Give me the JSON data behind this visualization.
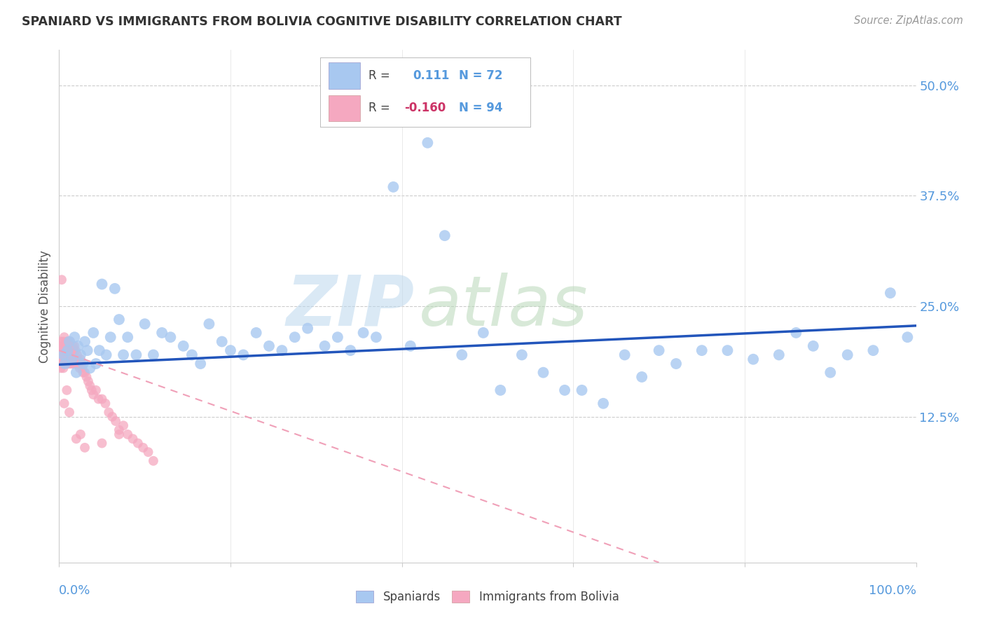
{
  "title": "SPANIARD VS IMMIGRANTS FROM BOLIVIA COGNITIVE DISABILITY CORRELATION CHART",
  "source": "Source: ZipAtlas.com",
  "ylabel": "Cognitive Disability",
  "xlim": [
    0.0,
    1.0
  ],
  "ylim": [
    -0.04,
    0.54
  ],
  "spaniards_color": "#a8c8f0",
  "spaniards_edge": "#7aaad8",
  "bolivia_color": "#f5a8c0",
  "bolivia_edge": "#e080a0",
  "trend_spaniards_color": "#2255bb",
  "trend_bolivia_color": "#f0a0b8",
  "background_color": "#ffffff",
  "grid_color": "#cccccc",
  "ytick_color": "#5599dd",
  "xtick_color": "#5599dd",
  "title_color": "#333333",
  "source_color": "#999999",
  "ylabel_color": "#555555",
  "watermark_zip_color": "#c8dff0",
  "watermark_atlas_color": "#c8e8c8",
  "spaniards_R": 0.111,
  "spaniards_N": 72,
  "bolivia_R": -0.16,
  "bolivia_N": 94,
  "sp_x": [
    0.005,
    0.007,
    0.01,
    0.012,
    0.015,
    0.018,
    0.02,
    0.022,
    0.025,
    0.028,
    0.03,
    0.033,
    0.036,
    0.04,
    0.043,
    0.047,
    0.05,
    0.055,
    0.06,
    0.065,
    0.07,
    0.075,
    0.08,
    0.09,
    0.1,
    0.11,
    0.12,
    0.13,
    0.145,
    0.155,
    0.165,
    0.175,
    0.19,
    0.2,
    0.215,
    0.23,
    0.245,
    0.26,
    0.275,
    0.29,
    0.31,
    0.325,
    0.34,
    0.355,
    0.37,
    0.39,
    0.41,
    0.43,
    0.45,
    0.47,
    0.495,
    0.515,
    0.54,
    0.565,
    0.59,
    0.61,
    0.635,
    0.66,
    0.68,
    0.7,
    0.72,
    0.75,
    0.78,
    0.81,
    0.84,
    0.86,
    0.88,
    0.9,
    0.92,
    0.95,
    0.97,
    0.99
  ],
  "sp_y": [
    0.195,
    0.185,
    0.2,
    0.21,
    0.19,
    0.215,
    0.175,
    0.205,
    0.195,
    0.185,
    0.21,
    0.2,
    0.18,
    0.22,
    0.185,
    0.2,
    0.275,
    0.195,
    0.215,
    0.27,
    0.235,
    0.195,
    0.215,
    0.195,
    0.23,
    0.195,
    0.22,
    0.215,
    0.205,
    0.195,
    0.185,
    0.23,
    0.21,
    0.2,
    0.195,
    0.22,
    0.205,
    0.2,
    0.215,
    0.225,
    0.205,
    0.215,
    0.2,
    0.22,
    0.215,
    0.385,
    0.205,
    0.435,
    0.33,
    0.195,
    0.22,
    0.155,
    0.195,
    0.175,
    0.155,
    0.155,
    0.14,
    0.195,
    0.17,
    0.2,
    0.185,
    0.2,
    0.2,
    0.19,
    0.195,
    0.22,
    0.205,
    0.175,
    0.195,
    0.2,
    0.265,
    0.215
  ],
  "bo_x": [
    0.001,
    0.001,
    0.001,
    0.002,
    0.002,
    0.002,
    0.002,
    0.003,
    0.003,
    0.003,
    0.003,
    0.004,
    0.004,
    0.004,
    0.005,
    0.005,
    0.005,
    0.005,
    0.006,
    0.006,
    0.006,
    0.006,
    0.007,
    0.007,
    0.007,
    0.007,
    0.008,
    0.008,
    0.008,
    0.009,
    0.009,
    0.009,
    0.01,
    0.01,
    0.01,
    0.011,
    0.011,
    0.011,
    0.012,
    0.012,
    0.013,
    0.013,
    0.013,
    0.014,
    0.014,
    0.015,
    0.015,
    0.016,
    0.016,
    0.017,
    0.017,
    0.018,
    0.018,
    0.019,
    0.019,
    0.02,
    0.021,
    0.022,
    0.023,
    0.024,
    0.025,
    0.026,
    0.027,
    0.028,
    0.03,
    0.032,
    0.034,
    0.036,
    0.038,
    0.04,
    0.043,
    0.046,
    0.05,
    0.054,
    0.058,
    0.062,
    0.066,
    0.07,
    0.075,
    0.08,
    0.086,
    0.092,
    0.098,
    0.104,
    0.11,
    0.003,
    0.006,
    0.009,
    0.012,
    0.02,
    0.025,
    0.03,
    0.05,
    0.07
  ],
  "bo_y": [
    0.195,
    0.185,
    0.205,
    0.2,
    0.19,
    0.21,
    0.18,
    0.195,
    0.205,
    0.185,
    0.2,
    0.195,
    0.205,
    0.185,
    0.2,
    0.19,
    0.21,
    0.18,
    0.195,
    0.205,
    0.185,
    0.215,
    0.195,
    0.205,
    0.185,
    0.2,
    0.195,
    0.205,
    0.185,
    0.2,
    0.19,
    0.21,
    0.195,
    0.205,
    0.185,
    0.2,
    0.19,
    0.21,
    0.195,
    0.185,
    0.2,
    0.19,
    0.21,
    0.195,
    0.185,
    0.2,
    0.19,
    0.205,
    0.185,
    0.2,
    0.19,
    0.205,
    0.185,
    0.2,
    0.19,
    0.185,
    0.195,
    0.19,
    0.185,
    0.18,
    0.19,
    0.185,
    0.18,
    0.175,
    0.175,
    0.17,
    0.165,
    0.16,
    0.155,
    0.15,
    0.155,
    0.145,
    0.145,
    0.14,
    0.13,
    0.125,
    0.12,
    0.11,
    0.115,
    0.105,
    0.1,
    0.095,
    0.09,
    0.085,
    0.075,
    0.28,
    0.14,
    0.155,
    0.13,
    0.1,
    0.105,
    0.09,
    0.095,
    0.105
  ],
  "trend_sp_x0": 0.0,
  "trend_sp_x1": 1.0,
  "trend_sp_y0": 0.184,
  "trend_sp_y1": 0.228,
  "trend_bo_x0": 0.0,
  "trend_bo_x1": 0.7,
  "trend_bo_y0": 0.2,
  "trend_bo_y1": -0.04
}
